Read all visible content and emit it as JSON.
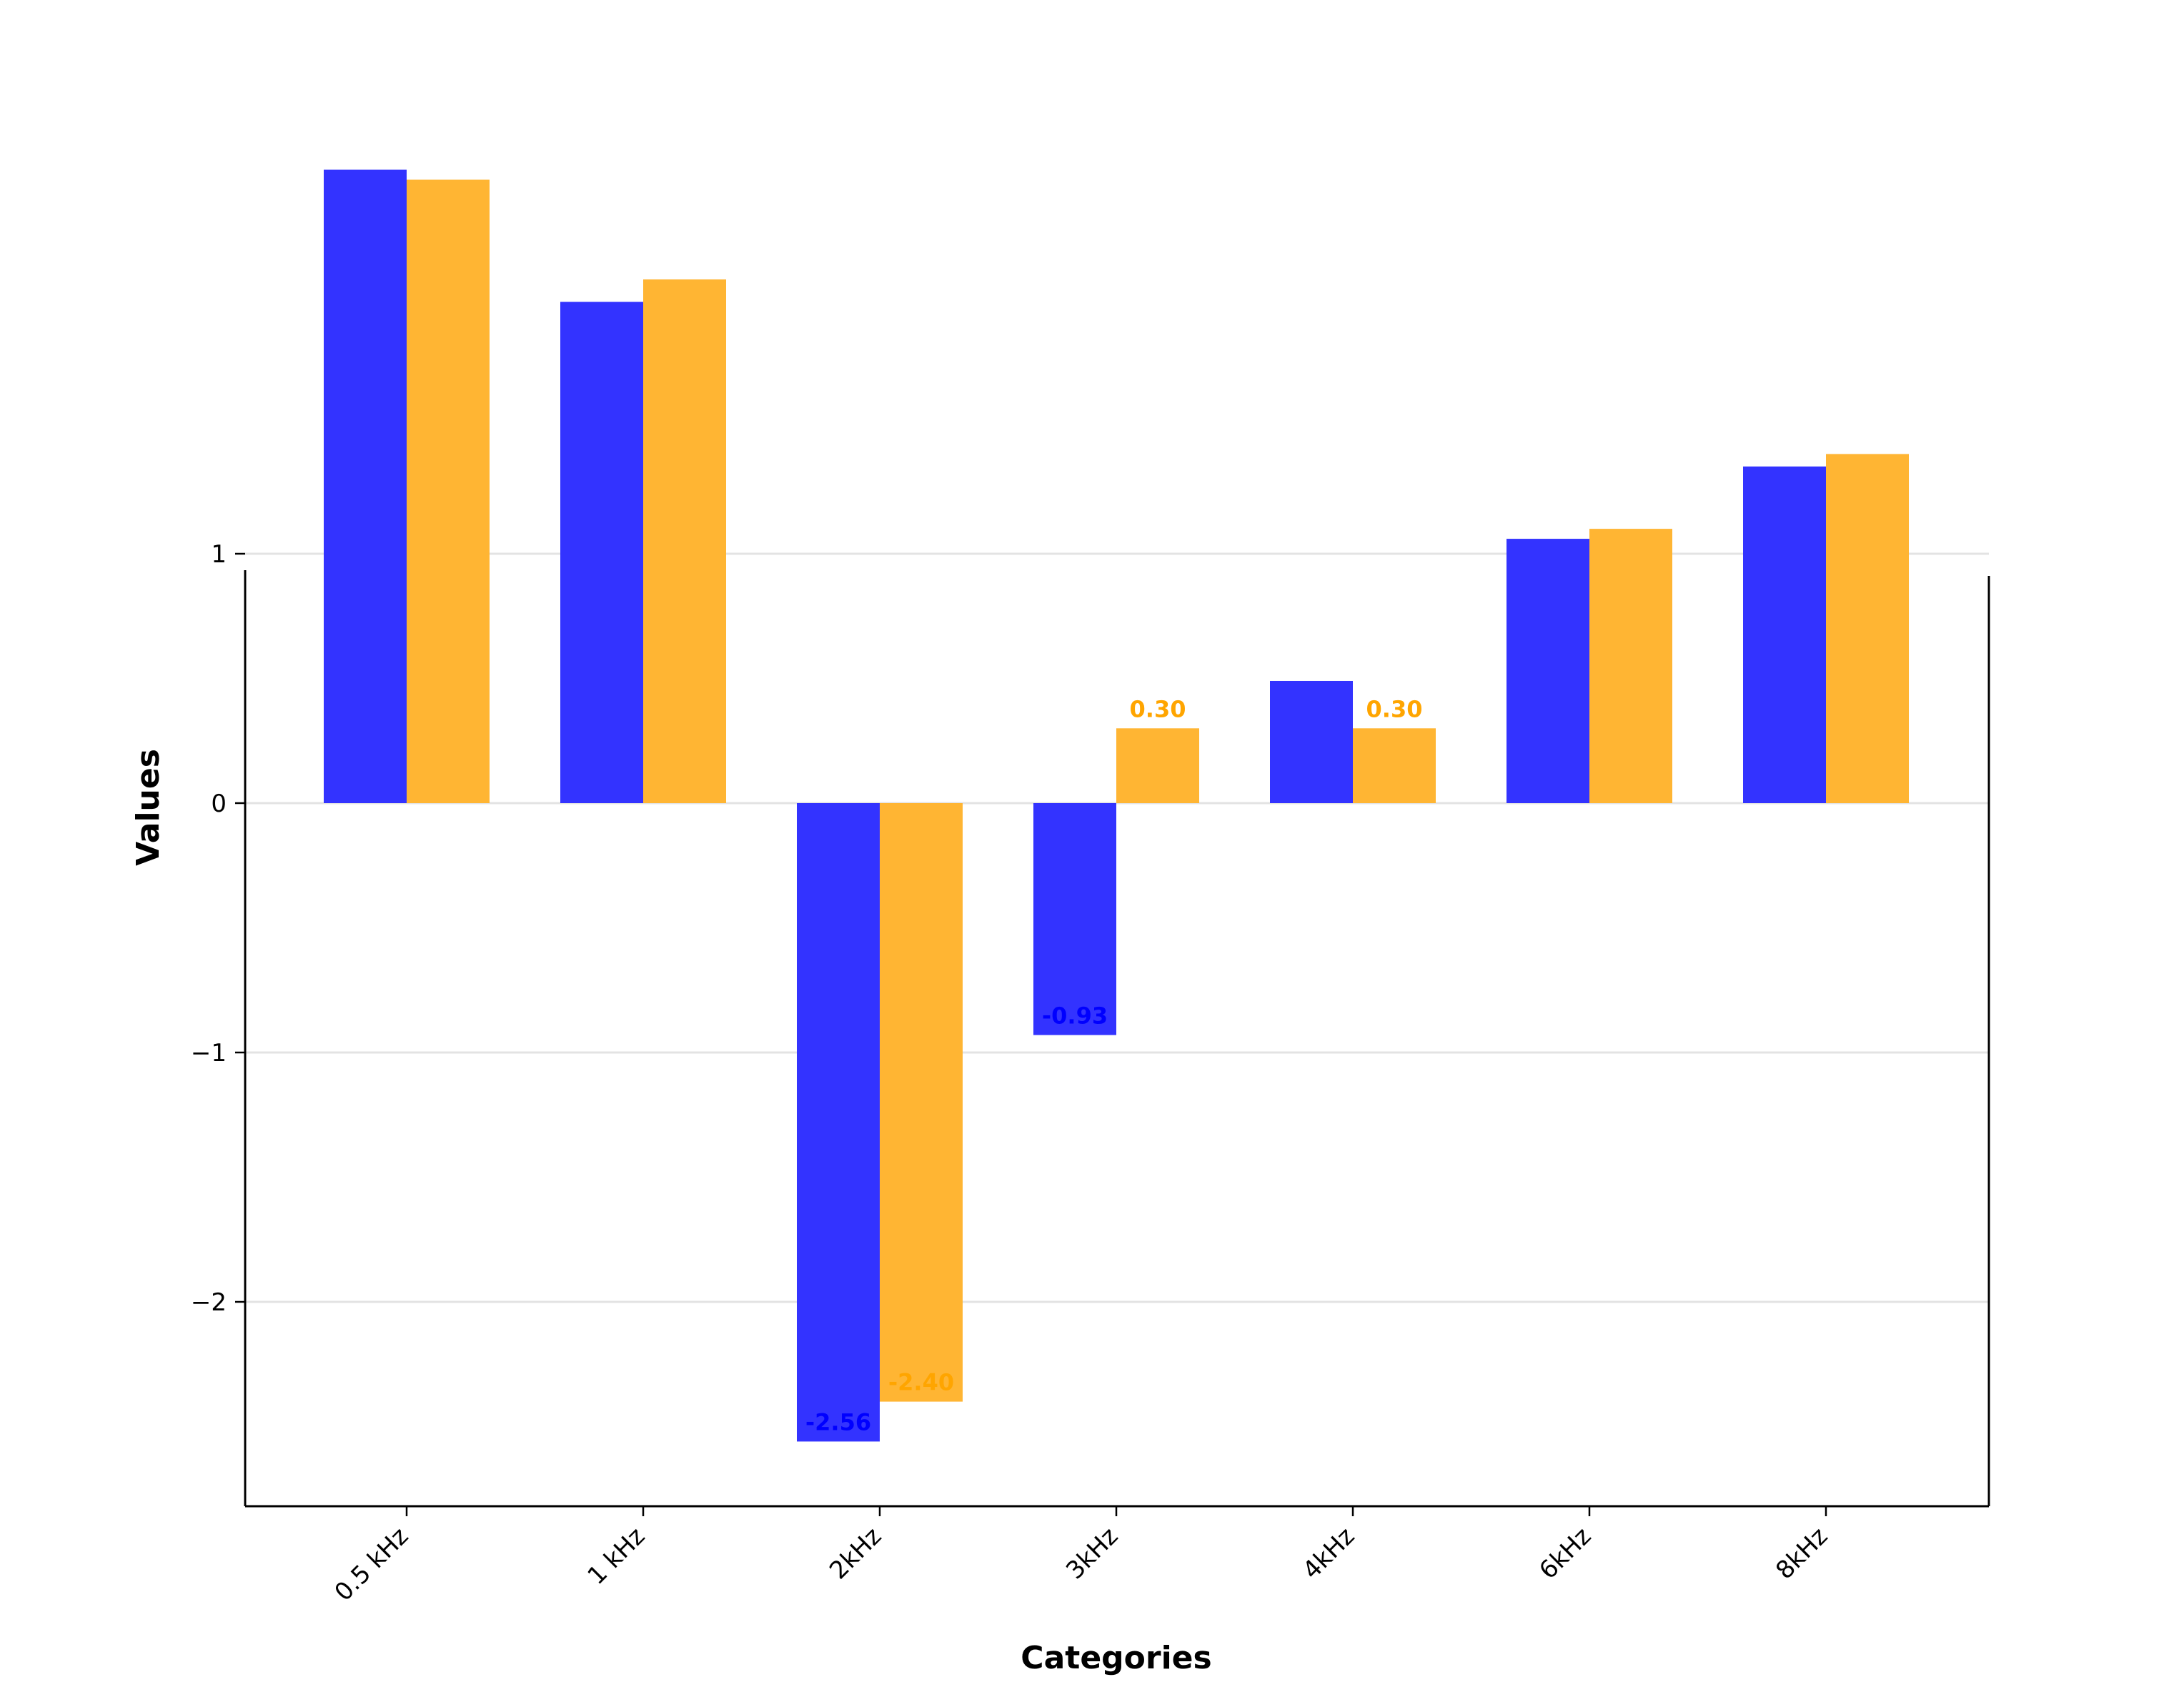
{
  "chart_data": {
    "type": "bar",
    "categories": [
      "0.5 kHz",
      "1 kHz",
      "2kHz",
      "3kHz",
      "4kHz",
      "6kHz",
      "8kHz"
    ],
    "series": [
      {
        "values": [
          2.54,
          2.01,
          -2.56,
          -0.93,
          0.49,
          1.06,
          1.35
        ],
        "color": "#3333ff",
        "label_color": "#0000ff"
      },
      {
        "values": [
          2.5,
          2.1,
          -2.4,
          0.3,
          0.3,
          1.1,
          1.4
        ],
        "color": "#ffb533",
        "label_color": "#ffa500"
      }
    ],
    "data_labels": [
      {
        "series": 0,
        "category": 2,
        "text": "-2.56"
      },
      {
        "series": 1,
        "category": 2,
        "text": "-2.40"
      },
      {
        "series": 0,
        "category": 3,
        "text": "-0.93"
      },
      {
        "series": 1,
        "category": 3,
        "text": "0.30"
      },
      {
        "series": 1,
        "category": 4,
        "text": "0.30"
      }
    ],
    "xlabel": "Categories",
    "ylabel": "Values",
    "yticks": [
      1,
      0,
      -1,
      -2
    ],
    "ytick_labels": [
      "1",
      "0",
      "−1",
      "−2"
    ],
    "ylim": [
      -2.82,
      2.82
    ],
    "grid": true,
    "grid_axis": "y"
  }
}
